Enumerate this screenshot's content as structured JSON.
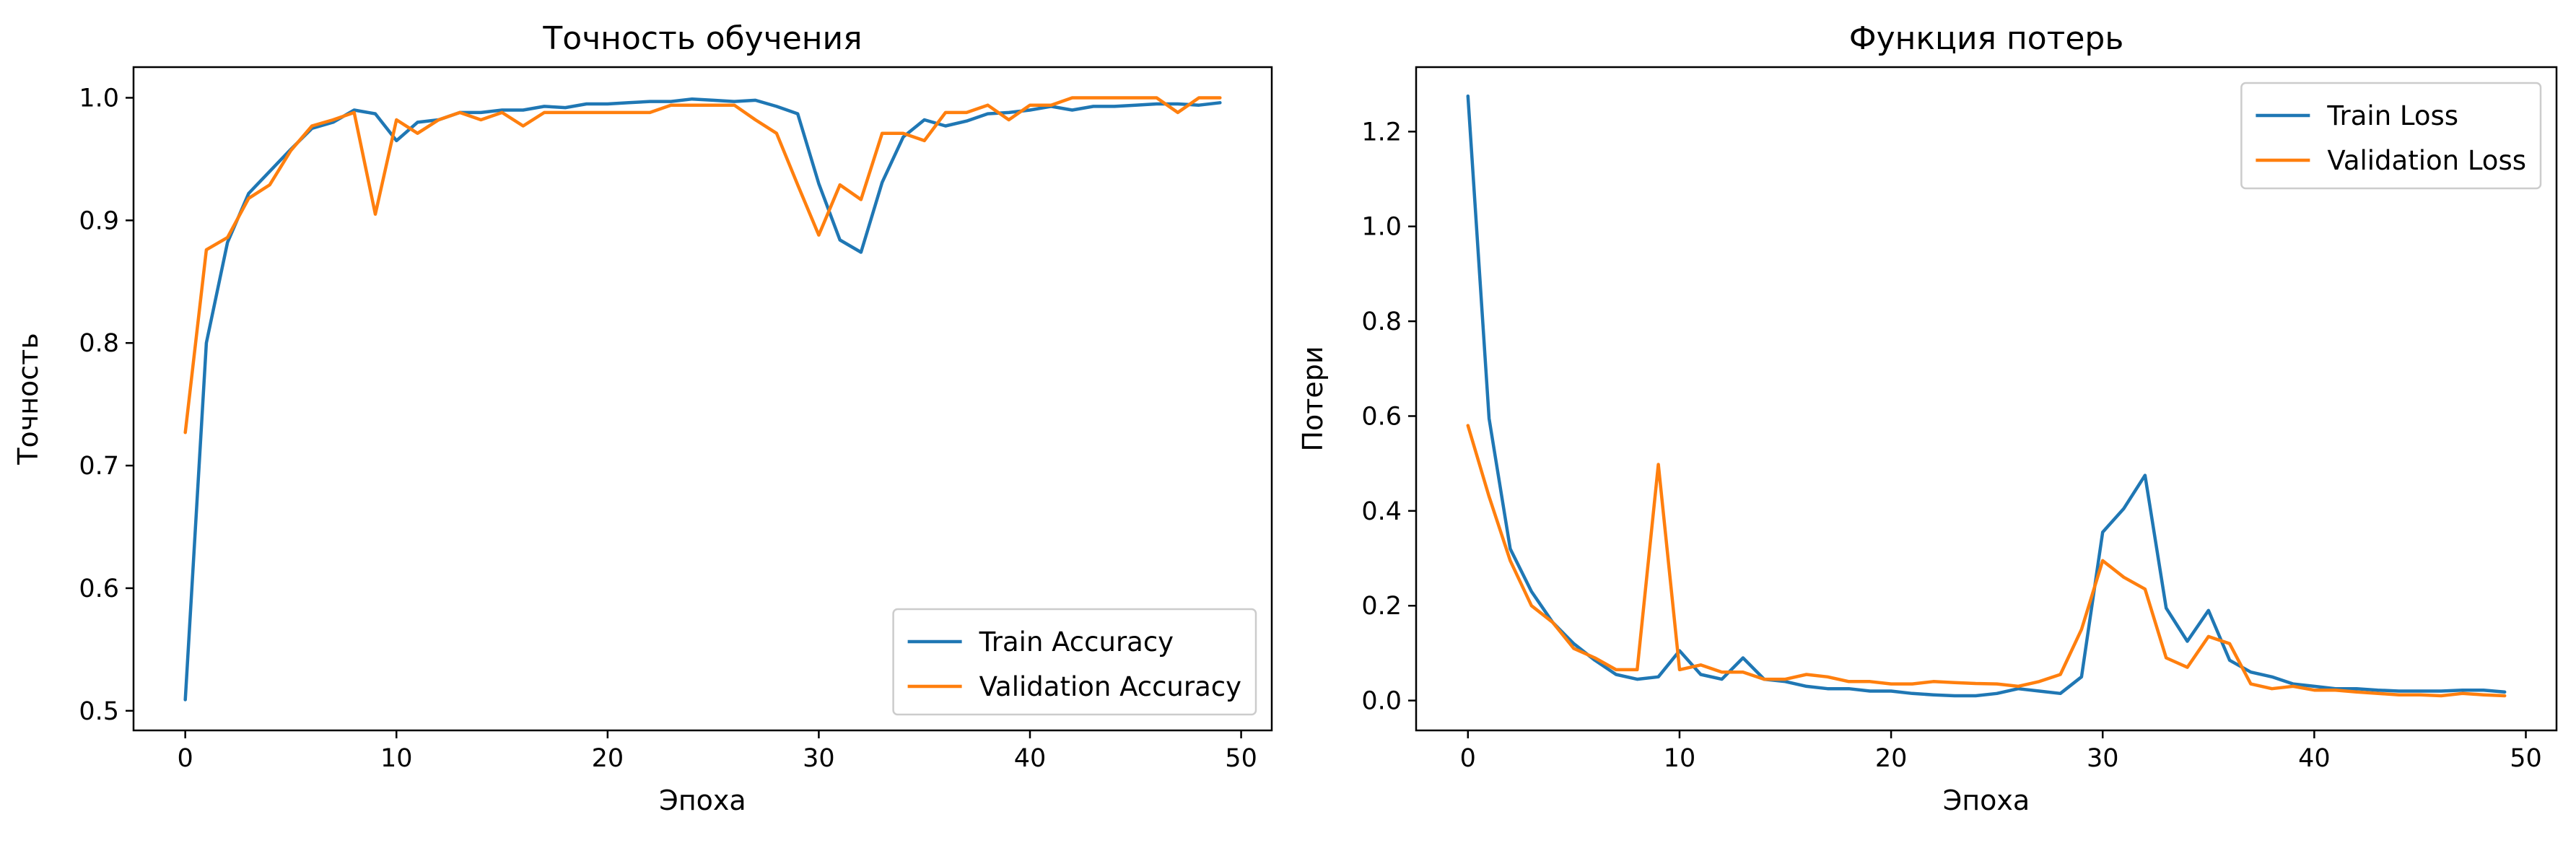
{
  "chart_data": [
    {
      "type": "line",
      "title": "Точность обучения",
      "xlabel": "Эпоха",
      "ylabel": "Точность",
      "xlim": [
        -2.45,
        51.45
      ],
      "ylim": [
        0.484,
        1.025
      ],
      "xticks": [
        0,
        10,
        20,
        30,
        40,
        50
      ],
      "yticks": [
        0.5,
        0.6,
        0.7,
        0.8,
        0.9,
        1.0
      ],
      "xtick_labels": [
        "0",
        "10",
        "20",
        "30",
        "40",
        "50"
      ],
      "ytick_labels": [
        "0.5",
        "0.6",
        "0.7",
        "0.8",
        "0.9",
        "1.0"
      ],
      "grid": false,
      "legend_position": "bottom-right",
      "x": [
        0,
        1,
        2,
        3,
        4,
        5,
        6,
        7,
        8,
        9,
        10,
        11,
        12,
        13,
        14,
        15,
        16,
        17,
        18,
        19,
        20,
        21,
        22,
        23,
        24,
        25,
        26,
        27,
        28,
        29,
        30,
        31,
        32,
        33,
        34,
        35,
        36,
        37,
        38,
        39,
        40,
        41,
        42,
        43,
        44,
        45,
        46,
        47,
        48,
        49
      ],
      "series": [
        {
          "name": "Train Accuracy",
          "color": "#1f77b4",
          "values": [
            0.509,
            0.8,
            0.882,
            0.922,
            0.94,
            0.958,
            0.975,
            0.98,
            0.99,
            0.987,
            0.965,
            0.98,
            0.982,
            0.988,
            0.988,
            0.99,
            0.99,
            0.993,
            0.992,
            0.995,
            0.995,
            0.996,
            0.997,
            0.997,
            0.999,
            0.998,
            0.997,
            0.998,
            0.993,
            0.987,
            0.93,
            0.884,
            0.874,
            0.931,
            0.968,
            0.982,
            0.977,
            0.981,
            0.987,
            0.988,
            0.99,
            0.993,
            0.99,
            0.993,
            0.993,
            0.994,
            0.995,
            0.995,
            0.994,
            0.996
          ]
        },
        {
          "name": "Validation Accuracy",
          "color": "#ff7f0e",
          "values": [
            0.727,
            0.876,
            0.886,
            0.918,
            0.929,
            0.957,
            0.977,
            0.982,
            0.988,
            0.905,
            0.982,
            0.971,
            0.982,
            0.988,
            0.982,
            0.988,
            0.977,
            0.988,
            0.988,
            0.988,
            0.988,
            0.988,
            0.988,
            0.994,
            0.994,
            0.994,
            0.994,
            0.982,
            0.971,
            0.929,
            0.888,
            0.929,
            0.917,
            0.971,
            0.971,
            0.965,
            0.988,
            0.988,
            0.994,
            0.982,
            0.994,
            0.994,
            1.0,
            1.0,
            1.0,
            1.0,
            1.0,
            0.988,
            1.0,
            1.0
          ]
        }
      ]
    },
    {
      "type": "line",
      "title": "Функция потерь",
      "xlabel": "Эпоха",
      "ylabel": "Потери",
      "xlim": [
        -2.45,
        51.45
      ],
      "ylim": [
        -0.063,
        1.336
      ],
      "xticks": [
        0,
        10,
        20,
        30,
        40,
        50
      ],
      "yticks": [
        0.0,
        0.2,
        0.4,
        0.6,
        0.8,
        1.0,
        1.2
      ],
      "xtick_labels": [
        "0",
        "10",
        "20",
        "30",
        "40",
        "50"
      ],
      "ytick_labels": [
        "0.0",
        "0.2",
        "0.4",
        "0.6",
        "0.8",
        "1.0",
        "1.2"
      ],
      "grid": false,
      "legend_position": "top-right",
      "x": [
        0,
        1,
        2,
        3,
        4,
        5,
        6,
        7,
        8,
        9,
        10,
        11,
        12,
        13,
        14,
        15,
        16,
        17,
        18,
        19,
        20,
        21,
        22,
        23,
        24,
        25,
        26,
        27,
        28,
        29,
        30,
        31,
        32,
        33,
        34,
        35,
        36,
        37,
        38,
        39,
        40,
        41,
        42,
        43,
        44,
        45,
        46,
        47,
        48,
        49
      ],
      "series": [
        {
          "name": "Train Loss",
          "color": "#1f77b4",
          "values": [
            1.275,
            0.595,
            0.32,
            0.23,
            0.165,
            0.12,
            0.085,
            0.055,
            0.045,
            0.05,
            0.105,
            0.055,
            0.045,
            0.09,
            0.045,
            0.04,
            0.03,
            0.025,
            0.025,
            0.02,
            0.02,
            0.015,
            0.012,
            0.01,
            0.01,
            0.015,
            0.025,
            0.02,
            0.015,
            0.05,
            0.355,
            0.405,
            0.475,
            0.195,
            0.125,
            0.19,
            0.085,
            0.06,
            0.05,
            0.035,
            0.03,
            0.025,
            0.025,
            0.022,
            0.02,
            0.02,
            0.02,
            0.022,
            0.022,
            0.018
          ]
        },
        {
          "name": "Validation Loss",
          "color": "#ff7f0e",
          "values": [
            0.58,
            0.43,
            0.295,
            0.2,
            0.165,
            0.11,
            0.09,
            0.065,
            0.065,
            0.498,
            0.065,
            0.075,
            0.06,
            0.06,
            0.045,
            0.045,
            0.055,
            0.05,
            0.04,
            0.04,
            0.035,
            0.035,
            0.04,
            0.038,
            0.036,
            0.035,
            0.03,
            0.04,
            0.055,
            0.15,
            0.295,
            0.26,
            0.235,
            0.09,
            0.07,
            0.135,
            0.12,
            0.035,
            0.025,
            0.03,
            0.022,
            0.022,
            0.018,
            0.015,
            0.012,
            0.012,
            0.01,
            0.015,
            0.012,
            0.01
          ]
        }
      ]
    }
  ]
}
